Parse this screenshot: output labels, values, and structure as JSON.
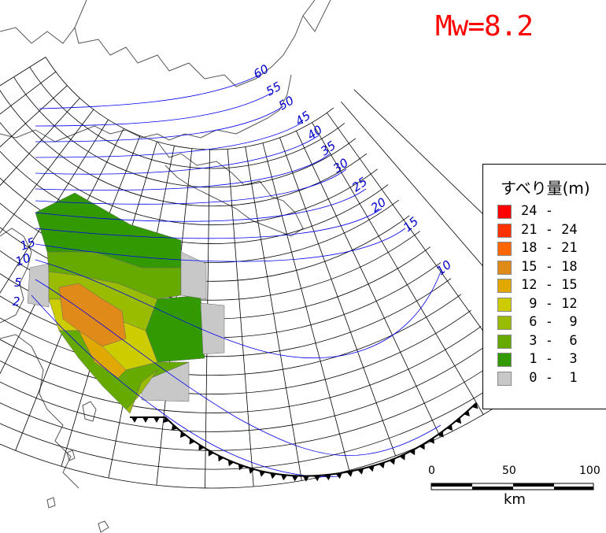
{
  "title": "Mw=8.2",
  "depth_contours": [
    {
      "label": "60"
    },
    {
      "label": "55"
    },
    {
      "label": "50"
    },
    {
      "label": "45"
    },
    {
      "label": "40"
    },
    {
      "label": "35"
    },
    {
      "label": "30"
    },
    {
      "label": "25"
    },
    {
      "label": "20"
    },
    {
      "label": "15"
    },
    {
      "label": "10"
    },
    {
      "label": "15"
    },
    {
      "label": "10"
    },
    {
      "label": "5"
    },
    {
      "label": "2"
    }
  ],
  "legend": {
    "title": "すべり量(m)",
    "items": [
      {
        "label": "24 -",
        "color": "#ff0000"
      },
      {
        "label": "21 - 24",
        "color": "#ff3300"
      },
      {
        "label": "18 - 21",
        "color": "#ff6600"
      },
      {
        "label": "15 - 18",
        "color": "#e08a1a"
      },
      {
        "label": "12 - 15",
        "color": "#e0a800"
      },
      {
        "label": " 9 - 12",
        "color": "#cccc00"
      },
      {
        "label": " 6 -  9",
        "color": "#99bb00"
      },
      {
        "label": " 3 -  6",
        "color": "#66aa00"
      },
      {
        "label": " 1 -  3",
        "color": "#339900"
      },
      {
        "label": " 0 -  1",
        "color": "#c8c8c8"
      }
    ]
  },
  "scale": {
    "ticks": [
      "0",
      "50",
      "100"
    ],
    "unit": "km"
  },
  "colors": {
    "contour": "#0000ee",
    "contour_label": "#0000cc",
    "coast": "#555555",
    "grid": "#000000",
    "trench": "#000000"
  }
}
